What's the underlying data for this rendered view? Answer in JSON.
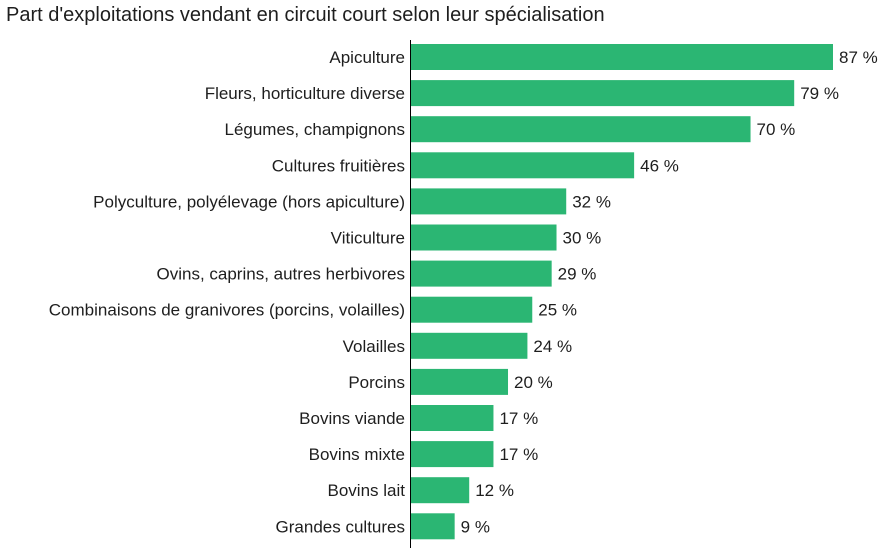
{
  "chart_data": {
    "type": "bar",
    "orientation": "horizontal",
    "title": "Part d'exploitations vendant en circuit court selon leur spécialisation",
    "categories": [
      "Apiculture",
      "Fleurs, horticulture diverse",
      "Légumes, champignons",
      "Cultures fruitières",
      "Polyculture, polyélevage (hors apiculture)",
      "Viticulture",
      "Ovins, caprins, autres herbivores",
      "Combinaisons de granivores (porcins, volailles)",
      "Volailles",
      "Porcins",
      "Bovins viande",
      "Bovins mixte",
      "Bovins lait",
      "Grandes cultures"
    ],
    "values": [
      87,
      79,
      70,
      46,
      32,
      30,
      29,
      25,
      24,
      20,
      17,
      17,
      12,
      9
    ],
    "labels": [
      "87 %",
      "79 %",
      "70 %",
      "46 %",
      "32 %",
      "30 %",
      "29 %",
      "25 %",
      "24 %",
      "20 %",
      "17 %",
      "17 %",
      "12 %",
      "9 %"
    ],
    "unit": "%",
    "xlim": [
      0,
      87
    ],
    "bar_color": "#2bb673",
    "axis_color": "#000000",
    "grid": false,
    "legend": "none"
  }
}
